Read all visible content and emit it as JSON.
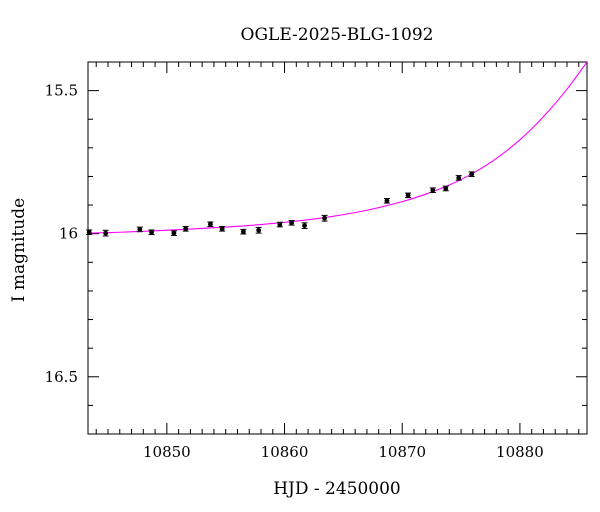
{
  "chart_data": {
    "type": "scatter",
    "title": "OGLE-2025-BLG-1092",
    "xlabel": "HJD - 2450000",
    "ylabel": "I magnitude",
    "xlim": [
      10843.3,
      10885.7
    ],
    "ylim": [
      16.7,
      15.4
    ],
    "y_inverted": true,
    "x_major_ticks": [
      10850,
      10860,
      10870,
      10880
    ],
    "x_minor_step": 1,
    "y_major_ticks": [
      15.5,
      16,
      16.5
    ],
    "y_tick_labels": [
      "15.5",
      "16",
      "16.5"
    ],
    "y_minor_step": 0.1,
    "grid": false,
    "series": [
      {
        "kind": "points",
        "color": "#000000",
        "x": [
          10843.4,
          10844.8,
          10847.7,
          10848.7,
          10850.6,
          10851.6,
          10853.7,
          10854.7,
          10856.5,
          10857.8,
          10859.6,
          10860.6,
          10861.7,
          10863.4,
          10868.7,
          10870.5,
          10872.6,
          10873.7,
          10874.8,
          10875.9
        ],
        "y": [
          15.995,
          15.998,
          15.985,
          15.995,
          15.998,
          15.983,
          15.967,
          15.983,
          15.993,
          15.988,
          15.968,
          15.962,
          15.972,
          15.946,
          15.885,
          15.866,
          15.848,
          15.842,
          15.805,
          15.792
        ],
        "err": [
          0.008,
          0.01,
          0.008,
          0.008,
          0.008,
          0.008,
          0.008,
          0.008,
          0.008,
          0.01,
          0.008,
          0.008,
          0.01,
          0.01,
          0.008,
          0.008,
          0.008,
          0.008,
          0.008,
          0.008
        ]
      },
      {
        "kind": "model",
        "color": "#ff00ff",
        "x": [
          10843.3,
          10846,
          10849,
          10852,
          10855,
          10858,
          10861,
          10864,
          10867,
          10870,
          10872,
          10874,
          10876,
          10878,
          10880,
          10882,
          10884,
          10885.7
        ],
        "y": [
          15.998,
          15.995,
          15.99,
          15.984,
          15.977,
          15.968,
          15.956,
          15.94,
          15.918,
          15.888,
          15.862,
          15.83,
          15.789,
          15.737,
          15.672,
          15.591,
          15.495,
          15.4
        ]
      }
    ]
  }
}
